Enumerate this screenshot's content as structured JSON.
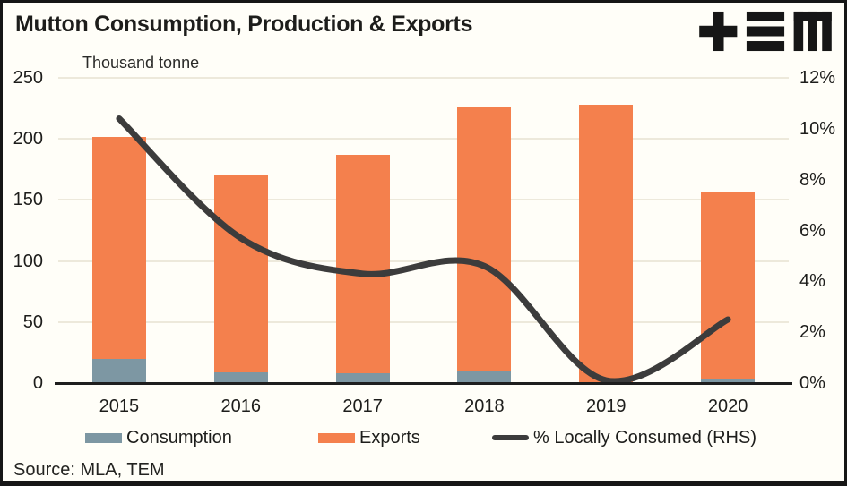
{
  "header": {
    "title": "Mutton Consumption, Production & Exports",
    "logo_name": "TEM"
  },
  "source_note": "Source: MLA, TEM",
  "colors": {
    "consumption_bar": "#7d97a3",
    "exports_bar": "#f4804d",
    "line": "#3c3c3c",
    "gridline": "#ede9db",
    "axis": "#1e1e1e",
    "text": "#1d1d1b",
    "background": "#fffef8"
  },
  "legend": {
    "items": [
      {
        "label": "Consumption",
        "swatch": "bar",
        "color": "#7d97a3"
      },
      {
        "label": "Exports",
        "swatch": "bar",
        "color": "#f4804d"
      },
      {
        "label": "% Locally Consumed (RHS)",
        "swatch": "line",
        "color": "#3c3c3c"
      }
    ]
  },
  "chart_data": {
    "type": "combo_stacked_bar_line",
    "title": "Mutton Consumption, Production & Exports",
    "categories": [
      "2015",
      "2016",
      "2017",
      "2018",
      "2019",
      "2020"
    ],
    "series": [
      {
        "name": "Consumption",
        "type": "bar",
        "stack": "total",
        "axis": "left",
        "color": "#7d97a3",
        "values": [
          20,
          9,
          8,
          10,
          0.5,
          4
        ]
      },
      {
        "name": "Exports",
        "type": "bar",
        "stack": "total",
        "axis": "left",
        "color": "#f4804d",
        "values": [
          182,
          161,
          179,
          216,
          227.5,
          153
        ]
      },
      {
        "name": "% Locally Consumed (RHS)",
        "type": "line",
        "axis": "right",
        "color": "#3c3c3c",
        "values": [
          10.4,
          5.7,
          4.3,
          4.6,
          0.1,
          2.5
        ]
      }
    ],
    "bar_totals": [
      202,
      170,
      187,
      226,
      228,
      157
    ],
    "left_axis": {
      "label": "Thousand tonne",
      "min": 0,
      "max": 250,
      "ticks": [
        250,
        200,
        150,
        100,
        50,
        0
      ],
      "tick_labels": [
        "250",
        "200",
        "150",
        "100",
        "50",
        "0"
      ]
    },
    "right_axis": {
      "min": 0,
      "max": 12,
      "ticks": [
        12,
        10,
        8,
        6,
        4,
        2,
        0
      ],
      "tick_labels": [
        "12%",
        "10%",
        "8%",
        "6%",
        "4%",
        "2%",
        "0%"
      ]
    },
    "grid": "horizontal-left-axis",
    "legend_position": "bottom"
  }
}
